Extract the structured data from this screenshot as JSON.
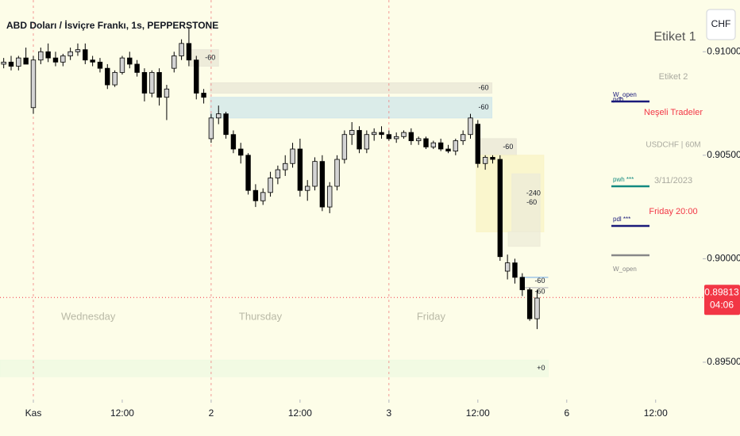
{
  "chart_data": {
    "type": "candlestick",
    "title": "ABD Doları / İsviçre Frankı, 1s, PEPPERSTONE",
    "x": [
      -4,
      -3,
      -2,
      -1,
      0,
      1,
      2,
      3,
      4,
      5,
      6,
      7,
      8,
      9,
      10,
      11,
      12,
      13,
      14,
      15,
      16,
      17,
      18,
      19,
      20,
      21,
      22,
      23,
      24,
      25,
      26,
      27,
      28,
      29,
      30,
      31,
      32,
      33,
      34,
      35,
      36,
      37,
      38,
      39,
      40,
      41,
      42,
      43,
      44,
      45,
      46,
      47,
      48,
      49,
      50,
      51,
      52,
      53,
      54,
      55,
      56,
      57,
      58,
      59,
      60,
      61,
      62,
      63,
      64,
      65,
      66,
      67,
      68
    ],
    "open": [
      0.9094,
      0.9095,
      0.9093,
      0.9097,
      0.9073,
      0.9096,
      0.91,
      0.9097,
      0.9095,
      0.9098,
      0.91,
      0.9101,
      0.9096,
      0.9095,
      0.9092,
      0.9084,
      0.909,
      0.9097,
      0.9094,
      0.909,
      0.908,
      0.909,
      0.9078,
      0.9092,
      0.9098,
      0.9104,
      0.9096,
      0.908,
      0.9058,
      0.9068,
      0.907,
      0.906,
      0.9053,
      0.905,
      0.9033,
      0.9028,
      0.9032,
      0.9039,
      0.9043,
      0.9046,
      0.9053,
      0.9033,
      0.9035,
      0.9047,
      0.9025,
      0.9035,
      0.9048,
      0.906,
      0.9062,
      0.9053,
      0.906,
      0.9061,
      0.906,
      0.9058,
      0.9059,
      0.9061,
      0.9057,
      0.9058,
      0.9054,
      0.9056,
      0.9053,
      0.9052,
      0.9057,
      0.906,
      0.9065,
      0.9046,
      0.9049,
      0.9048,
      0.8994,
      0.8998,
      0.8991,
      0.8985,
      0.8971
    ],
    "high": [
      0.9097,
      0.9098,
      0.9098,
      0.9102,
      0.9098,
      0.9102,
      0.9104,
      0.91,
      0.9099,
      0.9102,
      0.9104,
      0.9104,
      0.9098,
      0.9097,
      0.9094,
      0.9091,
      0.9098,
      0.91,
      0.9096,
      0.9092,
      0.9091,
      0.9092,
      0.9084,
      0.91,
      0.9106,
      0.9112,
      0.9098,
      0.9082,
      0.907,
      0.9074,
      0.9071,
      0.9062,
      0.9056,
      0.9051,
      0.9036,
      0.9034,
      0.9042,
      0.9045,
      0.905,
      0.9056,
      0.9058,
      0.9038,
      0.9049,
      0.905,
      0.9037,
      0.905,
      0.9062,
      0.9066,
      0.9064,
      0.9062,
      0.9063,
      0.9064,
      0.9062,
      0.9061,
      0.9062,
      0.9063,
      0.9059,
      0.9059,
      0.9057,
      0.9058,
      0.9055,
      0.9058,
      0.9062,
      0.907,
      0.9067,
      0.905,
      0.905,
      0.905,
      0.9002,
      0.9,
      0.8993,
      0.8986,
      0.8985
    ],
    "low": [
      0.9092,
      0.9091,
      0.9091,
      0.9094,
      0.907,
      0.9094,
      0.9095,
      0.9093,
      0.9093,
      0.9096,
      0.9098,
      0.9094,
      0.9093,
      0.909,
      0.9082,
      0.9083,
      0.9089,
      0.9092,
      0.9088,
      0.9076,
      0.9078,
      0.9074,
      0.9067,
      0.909,
      0.9096,
      0.9093,
      0.9077,
      0.9075,
      0.9056,
      0.9065,
      0.9058,
      0.9051,
      0.9046,
      0.9031,
      0.9025,
      0.9026,
      0.903,
      0.9036,
      0.904,
      0.9044,
      0.903,
      0.9028,
      0.9033,
      0.9023,
      0.9022,
      0.9033,
      0.9046,
      0.9055,
      0.9051,
      0.9051,
      0.9057,
      0.9058,
      0.9057,
      0.9056,
      0.9058,
      0.9055,
      0.9055,
      0.9053,
      0.9053,
      0.9052,
      0.9051,
      0.905,
      0.9055,
      0.9058,
      0.9044,
      0.9043,
      0.9046,
      0.8999,
      0.899,
      0.8988,
      0.8982,
      0.897,
      0.8966
    ],
    "close": [
      0.9095,
      0.9093,
      0.9097,
      0.9094,
      0.9096,
      0.91,
      0.9097,
      0.9095,
      0.9098,
      0.91,
      0.9101,
      0.9096,
      0.9095,
      0.9092,
      0.9084,
      0.909,
      0.9097,
      0.9094,
      0.909,
      0.908,
      0.909,
      0.9078,
      0.9082,
      0.9098,
      0.9104,
      0.9096,
      0.908,
      0.9078,
      0.9068,
      0.907,
      0.906,
      0.9053,
      0.905,
      0.9033,
      0.9028,
      0.9032,
      0.9039,
      0.9043,
      0.9046,
      0.9053,
      0.9033,
      0.9035,
      0.9047,
      0.9025,
      0.9035,
      0.9048,
      0.906,
      0.9062,
      0.9053,
      0.906,
      0.9061,
      0.906,
      0.9058,
      0.9059,
      0.9061,
      0.9057,
      0.9058,
      0.9054,
      0.9056,
      0.9053,
      0.9052,
      0.9057,
      0.906,
      0.9068,
      0.9046,
      0.9049,
      0.9048,
      0.9001,
      0.8998,
      0.8991,
      0.8985,
      0.8971,
      0.8981
    ],
    "up_color": "#d4d4d4",
    "down_color": "#000000",
    "xlim": [
      -4.5,
      90.35
    ],
    "ylim": [
      0.89335,
      0.9125
    ],
    "xticks": [
      {
        "value": 0,
        "label": "Kas"
      },
      {
        "value": 12,
        "label": "12:00"
      },
      {
        "value": 24,
        "label": "2"
      },
      {
        "value": 36,
        "label": "12:00"
      },
      {
        "value": 48,
        "label": "3"
      },
      {
        "value": 60,
        "label": "12:00"
      },
      {
        "value": 72,
        "label": "6"
      },
      {
        "value": 84,
        "label": "12:00"
      }
    ],
    "yticks": [
      {
        "value": 0.895,
        "label": "0.89500"
      },
      {
        "value": 0.9,
        "label": "0.90000"
      },
      {
        "value": 0.905,
        "label": "0.90500"
      },
      {
        "value": 0.91,
        "label": "0.91000"
      }
    ],
    "session_breaks": [
      0,
      24,
      48
    ],
    "day_labels": [
      "Wednesday",
      "Thursday",
      "Friday"
    ],
    "last_price": {
      "value": 0.89813,
      "label": "0.89813",
      "countdown": "04:06",
      "color": "#f23645"
    },
    "zones": [
      {
        "x": [
          21.2,
          25.0
        ],
        "price": [
          0.9093,
          0.9101
        ],
        "label": "-60",
        "color": "#e8e6d6"
      },
      {
        "x": [
          23.9,
          61.9
        ],
        "price": [
          0.908,
          0.9085
        ],
        "label": "-60",
        "color": "#e8e6d6"
      },
      {
        "x": [
          23.9,
          61.9
        ],
        "price": [
          0.9068,
          0.9078
        ],
        "label": "-60",
        "color": "#cfe6ea"
      },
      {
        "x": [
          60.3,
          65.2
        ],
        "price": [
          0.905,
          0.9058
        ],
        "label": "-60",
        "color": "#e8e6d6"
      },
      {
        "x": [
          59.8,
          68.9
        ],
        "price": [
          0.9013,
          0.905
        ],
        "label": "-240",
        "color": "#f8f3c4"
      },
      {
        "x": [
          64.6,
          68.4
        ],
        "price": [
          0.9013,
          0.9041
        ],
        "label": "-60",
        "color": "#ecebd8"
      },
      {
        "x": [
          64.1,
          68.4
        ],
        "price": [
          0.9006,
          0.9013
        ],
        "color": "#ecebd8"
      },
      {
        "x": [
          65.7,
          69.5
        ],
        "price": [
          0.8991,
          0.8991
        ],
        "label": "-60",
        "color": "#9ec5e8"
      },
      {
        "x": [
          65.7,
          69.5
        ],
        "price": [
          0.8986,
          0.8986
        ],
        "label": "-60",
        "color": "#c9c9c9"
      },
      {
        "x": [
          -4.5,
          69.5
        ],
        "price": [
          0.8943,
          0.8951
        ],
        "label": "+0",
        "color": "#eef8e1"
      }
    ]
  },
  "panel": {
    "title": "Etiket 1",
    "subtitle": "Etiket 2",
    "brand": "Neşeli Tradeler",
    "symbol": "USDCHF | 60M",
    "date": "3/11/2023",
    "time": "Friday 20:00",
    "legend": [
      {
        "labels": [
          "W_open",
          "pdh"
        ],
        "color": "#1a1a7a"
      },
      {
        "labels": [
          "pwh ***"
        ],
        "color": "#138a80"
      },
      {
        "labels": [
          "pdl ***"
        ],
        "color": "#1a1a7a"
      },
      {
        "labels": [
          "W_open"
        ],
        "color": "#888888"
      }
    ]
  },
  "currency_button": "CHF"
}
